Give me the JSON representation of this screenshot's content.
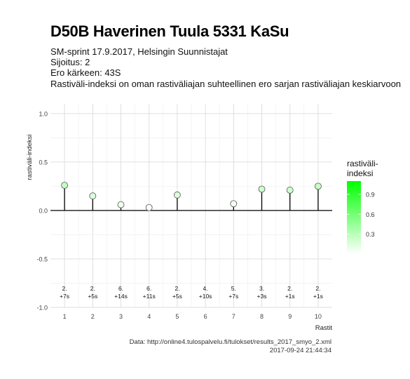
{
  "title": "D50B Haverinen Tuula 5331 KaSu",
  "subtitle_lines": [
    "SM-sprint 17.9.2017, Helsingin Suunnistajat",
    "Sijoitus: 2",
    "Ero kärkeen: 43S",
    "Rastiväli-indeksi on oman rastiväliajan suhteellinen ero sarjan rastiväliajan keskiarvoon"
  ],
  "caption_lines": [
    "Data: http://online4.tulospalvelu.fi/tulokset/results_2017_smyo_2.xml",
    "2017-09-24 21:44:34"
  ],
  "chart_data": {
    "type": "scatter",
    "style": "lollipop",
    "xlabel": "Rastit",
    "ylabel": "rastiväli-indeksi",
    "xlim": [
      0.5,
      10.5
    ],
    "ylim": [
      -1.0,
      1.1
    ],
    "x_ticks": [
      1,
      2,
      3,
      4,
      5,
      6,
      7,
      8,
      9,
      10
    ],
    "y_ticks": [
      -1.0,
      -0.5,
      0.0,
      0.5,
      1.0
    ],
    "y_tick_labels": [
      "-1.0",
      "-0.5",
      "0.0",
      "0.5",
      "1.0"
    ],
    "grid": true,
    "points": [
      {
        "x": 1,
        "y": 0.26,
        "label_top": "2.",
        "label_bottom": "+7s"
      },
      {
        "x": 2,
        "y": 0.15,
        "label_top": "2.",
        "label_bottom": "+5s"
      },
      {
        "x": 3,
        "y": 0.06,
        "label_top": "6.",
        "label_bottom": "+14s"
      },
      {
        "x": 4,
        "y": 0.03,
        "label_top": "6.",
        "label_bottom": "+11s"
      },
      {
        "x": 5,
        "y": 0.16,
        "label_top": "2.",
        "label_bottom": "+5s"
      },
      {
        "x": 6,
        "y": null,
        "label_top": "4.",
        "label_bottom": "+10s"
      },
      {
        "x": 7,
        "y": 0.07,
        "label_top": "5.",
        "label_bottom": "+7s"
      },
      {
        "x": 8,
        "y": 0.22,
        "label_top": "3.",
        "label_bottom": "+3s"
      },
      {
        "x": 9,
        "y": 0.21,
        "label_top": "2.",
        "label_bottom": "+1s"
      },
      {
        "x": 10,
        "y": 0.25,
        "label_top": "2.",
        "label_bottom": "+1s"
      }
    ],
    "legend": {
      "title_lines": [
        "rastiväli-",
        "indeksi"
      ],
      "placement": "right",
      "range": [
        0.0,
        1.1
      ],
      "ticks": [
        0.9,
        0.6,
        0.3
      ],
      "tick_labels": [
        "0.9",
        "0.6",
        "0.3"
      ],
      "color_low": "#ffffff",
      "color_high": "#00ff00"
    }
  }
}
